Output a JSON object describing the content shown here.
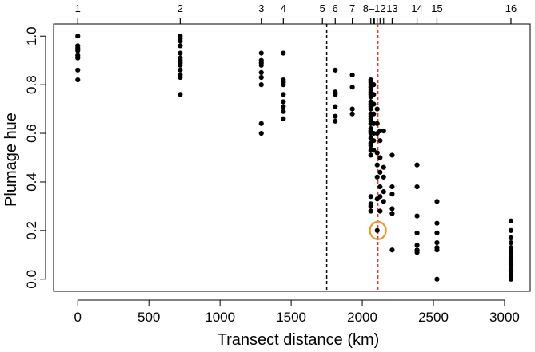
{
  "chart_data": {
    "type": "scatter",
    "xlabel": "Transect distance (km)",
    "ylabel": "Plumage hue",
    "xlim": [
      -170,
      3180
    ],
    "ylim": [
      -0.05,
      1.05
    ],
    "x_ticks": [
      0,
      500,
      1000,
      1500,
      2000,
      2500,
      3000
    ],
    "y_ticks": [
      "0.0",
      "0.2",
      "0.4",
      "0.6",
      "0.8",
      "1.0"
    ],
    "site_labels": [
      {
        "label": "1",
        "x": 0
      },
      {
        "label": "2",
        "x": 720
      },
      {
        "label": "3",
        "x": 1290
      },
      {
        "label": "4",
        "x": 1445
      },
      {
        "label": "5",
        "x": 1720
      },
      {
        "label": "6",
        "x": 1810
      },
      {
        "label": "7",
        "x": 1930
      },
      {
        "label": "8–12",
        "x": 2085
      },
      {
        "label": "13",
        "x": 2210
      },
      {
        "label": "14",
        "x": 2385
      },
      {
        "label": "15",
        "x": 2525
      },
      {
        "label": "16",
        "x": 3045
      }
    ],
    "vlines": [
      {
        "x": 1750,
        "color": "#000000",
        "style": "dashed"
      },
      {
        "x": 2110,
        "color": "#e03a2f",
        "style": "dashed"
      }
    ],
    "highlight": {
      "x": 2110,
      "y": 0.2,
      "color": "#f0962e"
    },
    "grid": false,
    "legend": "none",
    "points": [
      [
        0,
        1.0
      ],
      [
        0,
        0.96
      ],
      [
        0,
        0.95
      ],
      [
        0,
        0.94
      ],
      [
        0,
        0.92
      ],
      [
        0,
        0.91
      ],
      [
        0,
        0.86
      ],
      [
        0,
        0.82
      ],
      [
        720,
        1.0
      ],
      [
        720,
        0.99
      ],
      [
        720,
        0.98
      ],
      [
        720,
        0.96
      ],
      [
        720,
        0.93
      ],
      [
        720,
        0.91
      ],
      [
        720,
        0.9
      ],
      [
        720,
        0.89
      ],
      [
        720,
        0.88
      ],
      [
        720,
        0.86
      ],
      [
        720,
        0.84
      ],
      [
        720,
        0.83
      ],
      [
        720,
        0.76
      ],
      [
        1290,
        0.93
      ],
      [
        1290,
        0.9
      ],
      [
        1290,
        0.89
      ],
      [
        1290,
        0.88
      ],
      [
        1290,
        0.85
      ],
      [
        1290,
        0.83
      ],
      [
        1290,
        0.8
      ],
      [
        1290,
        0.64
      ],
      [
        1290,
        0.6
      ],
      [
        1445,
        0.93
      ],
      [
        1445,
        0.82
      ],
      [
        1445,
        0.81
      ],
      [
        1445,
        0.8
      ],
      [
        1445,
        0.76
      ],
      [
        1445,
        0.73
      ],
      [
        1445,
        0.71
      ],
      [
        1445,
        0.69
      ],
      [
        1445,
        0.66
      ],
      [
        1810,
        0.86
      ],
      [
        1810,
        0.77
      ],
      [
        1810,
        0.76
      ],
      [
        1810,
        0.71
      ],
      [
        1810,
        0.67
      ],
      [
        1810,
        0.65
      ],
      [
        1930,
        0.84
      ],
      [
        1930,
        0.79
      ],
      [
        1930,
        0.7
      ],
      [
        1930,
        0.68
      ],
      [
        2060,
        0.82
      ],
      [
        2060,
        0.81
      ],
      [
        2060,
        0.8
      ],
      [
        2060,
        0.79
      ],
      [
        2060,
        0.78
      ],
      [
        2060,
        0.77
      ],
      [
        2060,
        0.76
      ],
      [
        2060,
        0.75
      ],
      [
        2060,
        0.73
      ],
      [
        2060,
        0.72
      ],
      [
        2060,
        0.71
      ],
      [
        2060,
        0.7
      ],
      [
        2060,
        0.68
      ],
      [
        2060,
        0.67
      ],
      [
        2060,
        0.66
      ],
      [
        2060,
        0.65
      ],
      [
        2060,
        0.64
      ],
      [
        2060,
        0.62
      ],
      [
        2060,
        0.61
      ],
      [
        2060,
        0.6
      ],
      [
        2060,
        0.58
      ],
      [
        2060,
        0.56
      ],
      [
        2060,
        0.55
      ],
      [
        2060,
        0.53
      ],
      [
        2060,
        0.51
      ],
      [
        2060,
        0.34
      ],
      [
        2060,
        0.31
      ],
      [
        2060,
        0.3
      ],
      [
        2060,
        0.28
      ],
      [
        2080,
        0.8
      ],
      [
        2080,
        0.76
      ],
      [
        2080,
        0.72
      ],
      [
        2080,
        0.68
      ],
      [
        2080,
        0.64
      ],
      [
        2080,
        0.6
      ],
      [
        2080,
        0.57
      ],
      [
        2080,
        0.53
      ],
      [
        2105,
        0.7
      ],
      [
        2105,
        0.64
      ],
      [
        2105,
        0.6
      ],
      [
        2105,
        0.52
      ],
      [
        2105,
        0.47
      ],
      [
        2105,
        0.42
      ],
      [
        2105,
        0.33
      ],
      [
        2105,
        0.2
      ],
      [
        2125,
        0.61
      ],
      [
        2125,
        0.57
      ],
      [
        2125,
        0.5
      ],
      [
        2125,
        0.44
      ],
      [
        2125,
        0.38
      ],
      [
        2125,
        0.34
      ],
      [
        2125,
        0.28
      ],
      [
        2150,
        0.61
      ],
      [
        2150,
        0.46
      ],
      [
        2150,
        0.42
      ],
      [
        2150,
        0.36
      ],
      [
        2150,
        0.32
      ],
      [
        2210,
        0.51
      ],
      [
        2210,
        0.38
      ],
      [
        2210,
        0.35
      ],
      [
        2210,
        0.29
      ],
      [
        2210,
        0.27
      ],
      [
        2210,
        0.12
      ],
      [
        2385,
        0.47
      ],
      [
        2385,
        0.38
      ],
      [
        2385,
        0.26
      ],
      [
        2385,
        0.19
      ],
      [
        2385,
        0.14
      ],
      [
        2385,
        0.12
      ],
      [
        2385,
        0.11
      ],
      [
        2525,
        0.32
      ],
      [
        2525,
        0.23
      ],
      [
        2525,
        0.19
      ],
      [
        2525,
        0.15
      ],
      [
        2525,
        0.13
      ],
      [
        2525,
        0.12
      ],
      [
        2525,
        0.0
      ],
      [
        3045,
        0.24
      ],
      [
        3045,
        0.2
      ],
      [
        3045,
        0.17
      ],
      [
        3045,
        0.15
      ],
      [
        3045,
        0.13
      ],
      [
        3045,
        0.12
      ],
      [
        3045,
        0.11
      ],
      [
        3045,
        0.1
      ],
      [
        3045,
        0.09
      ],
      [
        3045,
        0.08
      ],
      [
        3045,
        0.07
      ],
      [
        3045,
        0.06
      ],
      [
        3045,
        0.05
      ],
      [
        3045,
        0.04
      ],
      [
        3045,
        0.03
      ],
      [
        3045,
        0.02
      ],
      [
        3045,
        0.01
      ],
      [
        3045,
        0.0
      ]
    ]
  }
}
